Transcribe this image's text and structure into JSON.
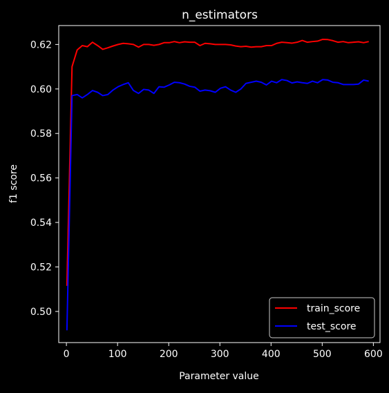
{
  "chart_data": {
    "type": "line",
    "title": "n_estimators",
    "xlabel": "Parameter value",
    "ylabel": "f1 score",
    "xlim": [
      -15,
      613
    ],
    "ylim": [
      0.486,
      0.6285
    ],
    "xticks": [
      0,
      100,
      200,
      300,
      400,
      500,
      600
    ],
    "yticks": [
      0.5,
      0.52,
      0.54,
      0.56,
      0.58,
      0.6,
      0.62
    ],
    "xtick_labels": [
      "0",
      "100",
      "200",
      "300",
      "400",
      "500",
      "600"
    ],
    "ytick_labels": [
      "0.50",
      "0.52",
      "0.54",
      "0.56",
      "0.58",
      "0.60",
      "0.62"
    ],
    "grid": false,
    "legend_position": "lower-right",
    "background": "#000000",
    "foreground": "#ffffff",
    "x": [
      1,
      11,
      21,
      31,
      41,
      51,
      61,
      71,
      81,
      91,
      101,
      111,
      121,
      131,
      141,
      151,
      161,
      171,
      181,
      191,
      201,
      211,
      221,
      231,
      241,
      251,
      261,
      271,
      281,
      291,
      301,
      311,
      321,
      331,
      341,
      351,
      361,
      371,
      381,
      391,
      401,
      411,
      421,
      431,
      441,
      451,
      461,
      471,
      481,
      491,
      501,
      511,
      521,
      531,
      541,
      551,
      561,
      571,
      581,
      591
    ],
    "series": [
      {
        "name": "train_score",
        "color": "#ff0000",
        "values": [
          0.5115,
          0.61,
          0.6175,
          0.6195,
          0.619,
          0.621,
          0.6195,
          0.6178,
          0.6185,
          0.6193,
          0.62,
          0.6205,
          0.6203,
          0.62,
          0.6188,
          0.62,
          0.62,
          0.6196,
          0.62,
          0.6208,
          0.6208,
          0.6213,
          0.6208,
          0.6212,
          0.621,
          0.621,
          0.6195,
          0.6205,
          0.6203,
          0.62,
          0.62,
          0.62,
          0.6198,
          0.6193,
          0.619,
          0.6192,
          0.6188,
          0.619,
          0.619,
          0.6195,
          0.6195,
          0.6205,
          0.621,
          0.6208,
          0.6206,
          0.621,
          0.6218,
          0.621,
          0.6213,
          0.6215,
          0.6223,
          0.6222,
          0.6217,
          0.621,
          0.6213,
          0.6208,
          0.621,
          0.6212,
          0.6208,
          0.6213
        ]
      },
      {
        "name": "test_score",
        "color": "#0000ff",
        "values": [
          0.4915,
          0.597,
          0.5975,
          0.596,
          0.5975,
          0.5993,
          0.5985,
          0.597,
          0.5975,
          0.5995,
          0.601,
          0.602,
          0.6028,
          0.5993,
          0.598,
          0.5998,
          0.5995,
          0.598,
          0.601,
          0.6008,
          0.6018,
          0.603,
          0.6028,
          0.6022,
          0.6012,
          0.6008,
          0.599,
          0.5995,
          0.5992,
          0.5985,
          0.6003,
          0.601,
          0.5995,
          0.5985,
          0.6,
          0.6025,
          0.603,
          0.6035,
          0.603,
          0.6018,
          0.6035,
          0.6028,
          0.6042,
          0.6038,
          0.6027,
          0.6032,
          0.6028,
          0.6025,
          0.6035,
          0.6028,
          0.6042,
          0.604,
          0.603,
          0.6028,
          0.602,
          0.602,
          0.602,
          0.6022,
          0.604,
          0.6035
        ]
      }
    ]
  }
}
